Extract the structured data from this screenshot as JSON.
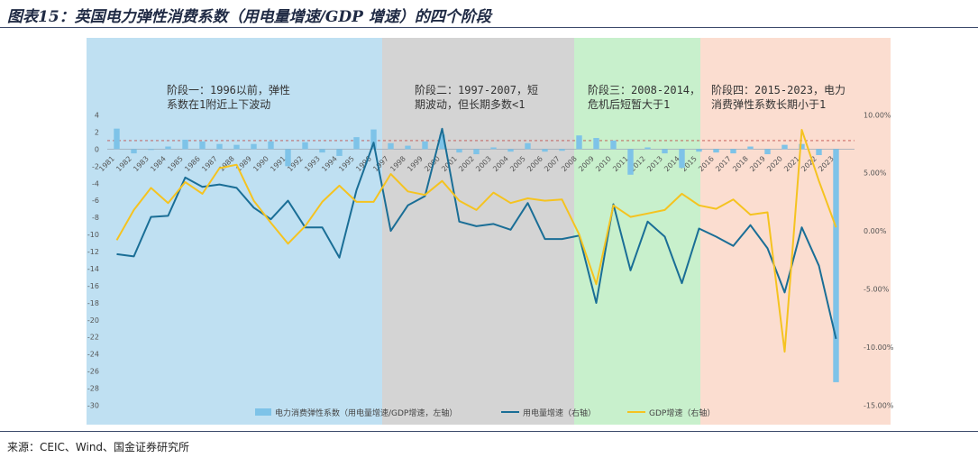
{
  "title": "图表15：英国电力弹性消费系数（用电量增速/GDP 增速）的四个阶段",
  "source": "来源：CEIC、Wind、国金证券研究所",
  "colors": {
    "bar": "#7ec3e8",
    "power": "#1a6e96",
    "gdp": "#f5c320",
    "phase1": "#bfe0f2",
    "phase2": "#d4d4d4",
    "phase3": "#c8f0cc",
    "phase4": "#fbddd0",
    "refline": "#c0504d"
  },
  "phases": [
    {
      "label_lines": [
        "阶段一：1996以前，弹性",
        "系数在1附近上下波动"
      ],
      "start": "1981",
      "end": "1996"
    },
    {
      "label_lines": [
        "阶段二：1997-2007，短",
        "期波动，但长期多数<1"
      ],
      "start": "1997",
      "end": "2007"
    },
    {
      "label_lines": [
        "阶段三：2008-2014，",
        "危机后短暂大于1"
      ],
      "start": "2008",
      "end": "2014"
    },
    {
      "label_lines": [
        "阶段四：2015-2023，电力",
        "消费弹性系数长期小于1"
      ],
      "start": "2015",
      "end": "2023"
    }
  ],
  "legend": [
    {
      "label": "电力消费弹性系数（用电量增速/GDP增速，左轴）",
      "kind": "bar"
    },
    {
      "label": "用电量增速（右轴）",
      "kind": "power"
    },
    {
      "label": "GDP增速（右轴）",
      "kind": "gdp"
    }
  ],
  "chart_data": {
    "type": "bar+line",
    "left_axis": {
      "min": -30,
      "max": 4,
      "step": 2,
      "reference_line": 1
    },
    "right_axis": {
      "min": -15,
      "max": 10,
      "step": 5,
      "format": "percent"
    },
    "years": [
      "1981",
      "1982",
      "1983",
      "1984",
      "1985",
      "1986",
      "1987",
      "1988",
      "1989",
      "1990",
      "1991",
      "1992",
      "1993",
      "1994",
      "1995",
      "1996",
      "1997",
      "1998",
      "1999",
      "2000",
      "2001",
      "2002",
      "2003",
      "2004",
      "2005",
      "2006",
      "2007",
      "2008",
      "2009",
      "2010",
      "2011",
      "2012",
      "2013",
      "2014",
      "2015",
      "2016",
      "2017",
      "2018",
      "2019",
      "2020",
      "2021",
      "2022",
      "2023"
    ],
    "series": [
      {
        "name": "电力消费弹性系数（用电量增速/GDP增速，左轴）",
        "axis": "left",
        "kind": "bar",
        "values": [
          2.4,
          -0.5,
          -0.1,
          0.3,
          1.1,
          0.9,
          0.6,
          0.5,
          0.6,
          0.9,
          -2.0,
          0.8,
          -0.4,
          -0.8,
          1.4,
          2.3,
          0.7,
          0.4,
          0.9,
          1.7,
          -0.4,
          -0.6,
          0.2,
          -0.3,
          0.7,
          -0.3,
          -0.2,
          1.6,
          1.3,
          1.0,
          -3.0,
          0.2,
          -0.5,
          -2.2,
          -0.3,
          -0.4,
          -0.5,
          0.3,
          -0.6,
          0.5,
          0.6,
          -0.7,
          -27.3
        ]
      },
      {
        "name": "用电量增速（右轴）",
        "axis": "right",
        "kind": "line",
        "values": [
          -2.0,
          -2.2,
          1.2,
          1.3,
          4.6,
          3.8,
          4.0,
          3.7,
          2.0,
          1.0,
          2.6,
          0.3,
          0.3,
          -2.3,
          3.5,
          7.6,
          0.0,
          2.2,
          3.0,
          8.8,
          0.8,
          0.4,
          0.6,
          0.1,
          2.4,
          -0.7,
          -0.7,
          -0.4,
          -6.2,
          2.3,
          -3.4,
          0.8,
          -0.5,
          -4.5,
          0.2,
          -0.5,
          -1.3,
          0.5,
          -1.5,
          -5.3,
          0.3,
          -3.0,
          -9.3
        ]
      },
      {
        "name": "GDP增速（右轴）",
        "axis": "right",
        "kind": "line",
        "values": [
          -0.8,
          1.8,
          3.7,
          2.4,
          4.2,
          3.2,
          5.4,
          5.7,
          2.6,
          0.7,
          -1.1,
          0.4,
          2.5,
          3.9,
          2.5,
          2.5,
          4.9,
          3.4,
          3.1,
          4.3,
          2.6,
          1.8,
          3.3,
          2.4,
          2.8,
          2.6,
          2.7,
          -0.3,
          -4.6,
          2.2,
          1.2,
          1.5,
          1.8,
          3.2,
          2.2,
          1.9,
          2.7,
          1.4,
          1.6,
          -10.4,
          8.7,
          4.3,
          0.3
        ]
      }
    ]
  }
}
